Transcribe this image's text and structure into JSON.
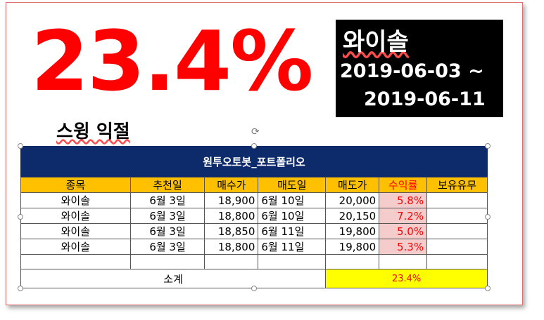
{
  "headline_pct": "23.4%",
  "box": {
    "stock": "와이솔",
    "date_from": "2019-06-03 ~",
    "date_to": "2019-06-11"
  },
  "subtitle": "스윙 익절",
  "table": {
    "title": "원투오토봇_포트폴리오",
    "headers": [
      "종목",
      "추천일",
      "매수가",
      "매도일",
      "매도가",
      "수익률",
      "보유유무"
    ],
    "rows": [
      [
        "와이솔",
        "6월 3일",
        "18,900",
        "6월 10일",
        "20,000",
        "5.8%",
        ""
      ],
      [
        "와이솔",
        "6월 3일",
        "18,800",
        "6월 10일",
        "20,150",
        "7.2%",
        ""
      ],
      [
        "와이솔",
        "6월 3일",
        "18,850",
        "6월 11일",
        "19,800",
        "5.0%",
        ""
      ],
      [
        "와이솔",
        "6월 3일",
        "18,800",
        "6월 11일",
        "19,800",
        "5.3%",
        ""
      ]
    ],
    "total_label": "소계",
    "total_value": "23.4%"
  },
  "colors": {
    "headline": "#ff0000",
    "table_title_bg": "#0d2a6b",
    "header_bg": "#ffc000",
    "yield_bg": "#f4cccc",
    "total_bg": "#ffff00"
  }
}
